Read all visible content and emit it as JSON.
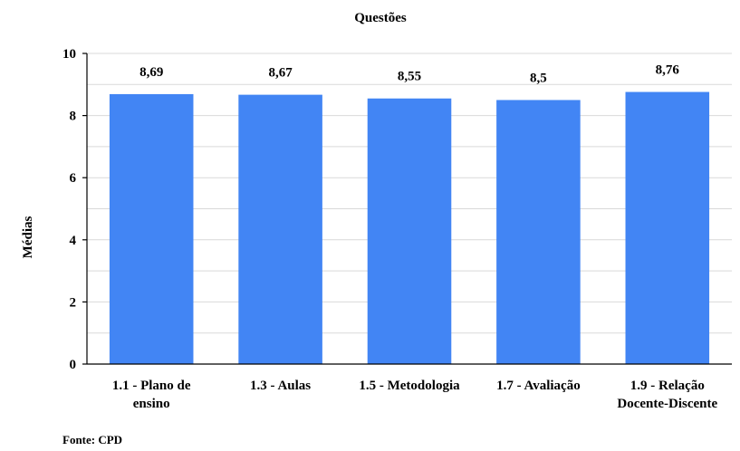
{
  "chart_data": {
    "type": "bar",
    "title": "Questões",
    "xlabel": "",
    "ylabel": "Médias",
    "ylim": [
      0,
      10
    ],
    "yticks": [
      0,
      2,
      4,
      6,
      8,
      10
    ],
    "minor_step": 1,
    "grid": true,
    "categories": [
      [
        "1.1 - Plano de",
        "ensino"
      ],
      [
        "1.3 - Aulas"
      ],
      [
        "1.5 - Metodologia"
      ],
      [
        "1.7 - Avaliação"
      ],
      [
        "1.9 - Relação",
        "Docente-Discente"
      ]
    ],
    "values": [
      8.69,
      8.67,
      8.55,
      8.5,
      8.76
    ],
    "data_labels": [
      "8,69",
      "8,67",
      "8,55",
      "8,5",
      "8,76"
    ],
    "bar_color": "#4285f4",
    "grid_color": "#d9d9d9"
  },
  "source": "Fonte: CPD"
}
